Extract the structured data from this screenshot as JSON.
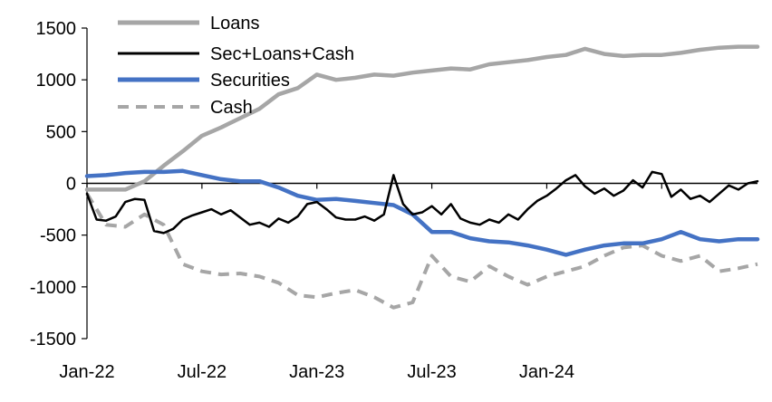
{
  "chart_data": {
    "type": "line",
    "title": "",
    "xlabel": "",
    "ylabel": "",
    "x_tick_labels": [
      "Jan-22",
      "Jul-22",
      "Jan-23",
      "Jul-23",
      "Jan-24"
    ],
    "y_tick_labels": [
      "1500",
      "1000",
      "500",
      "0",
      "-500",
      "-1000",
      "-1500"
    ],
    "ylim": [
      -1500,
      1500
    ],
    "grid": false,
    "legend_position": "top-left",
    "x_unit": "months since Jan-22",
    "series": [
      {
        "name": "Loans",
        "color": "#A6A6A6",
        "style": "solid",
        "x": [
          0,
          1,
          2,
          3,
          4,
          5,
          6,
          7,
          8,
          9,
          10,
          11,
          12,
          13,
          14,
          15,
          16,
          17,
          18,
          19,
          20,
          21,
          22,
          23,
          24,
          25,
          26,
          27,
          28,
          29,
          30,
          31,
          32,
          33,
          34,
          35
        ],
        "values": [
          -60,
          -60,
          -60,
          20,
          170,
          310,
          460,
          540,
          630,
          720,
          860,
          920,
          1050,
          1000,
          1020,
          1050,
          1040,
          1070,
          1090,
          1110,
          1100,
          1150,
          1170,
          1190,
          1220,
          1240,
          1300,
          1250,
          1230,
          1240,
          1240,
          1260,
          1290,
          1310,
          1320,
          1320
        ]
      },
      {
        "name": "Sec+Loans+Cash",
        "color": "#000000",
        "style": "solid",
        "x": [
          0,
          0.5,
          1,
          1.5,
          2,
          2.5,
          3,
          3.5,
          4,
          4.5,
          5,
          5.5,
          6,
          6.5,
          7,
          7.5,
          8,
          8.5,
          9,
          9.5,
          10,
          10.5,
          11,
          11.5,
          12,
          12.5,
          13,
          13.5,
          14,
          14.5,
          15,
          15.5,
          16,
          16.5,
          17,
          17.5,
          18,
          18.5,
          19,
          19.5,
          20,
          20.5,
          21,
          21.5,
          22,
          22.5,
          23,
          23.5,
          24,
          24.5,
          25,
          25.5,
          26,
          26.5,
          27,
          27.5,
          28,
          28.5,
          29,
          29.5,
          30,
          30.5,
          31,
          31.5,
          32,
          32.5,
          33,
          33.5,
          34,
          34.5,
          35
        ],
        "values": [
          -100,
          -350,
          -360,
          -320,
          -180,
          -150,
          -160,
          -460,
          -480,
          -440,
          -350,
          -310,
          -280,
          -250,
          -300,
          -260,
          -330,
          -400,
          -380,
          -420,
          -340,
          -380,
          -320,
          -200,
          -180,
          -250,
          -330,
          -350,
          -350,
          -320,
          -360,
          -300,
          80,
          -200,
          -300,
          -280,
          -220,
          -300,
          -200,
          -340,
          -380,
          -400,
          -350,
          -380,
          -300,
          -350,
          -250,
          -170,
          -120,
          -50,
          30,
          80,
          -30,
          -100,
          -50,
          -120,
          -70,
          30,
          -40,
          110,
          90,
          -130,
          -60,
          -150,
          -120,
          -180,
          -100,
          -20,
          -60,
          0,
          20
        ]
      },
      {
        "name": "Securities",
        "color": "#4472C4",
        "style": "solid",
        "x": [
          0,
          1,
          2,
          3,
          4,
          5,
          6,
          7,
          8,
          9,
          10,
          11,
          12,
          13,
          14,
          15,
          16,
          17,
          18,
          19,
          20,
          21,
          22,
          23,
          24,
          25,
          26,
          27,
          28,
          29,
          30,
          31,
          32,
          33,
          34,
          35
        ],
        "values": [
          70,
          80,
          100,
          110,
          110,
          120,
          80,
          40,
          20,
          20,
          -40,
          -120,
          -160,
          -150,
          -170,
          -190,
          -210,
          -300,
          -470,
          -470,
          -530,
          -560,
          -570,
          -600,
          -640,
          -690,
          -640,
          -600,
          -580,
          -580,
          -540,
          -470,
          -540,
          -560,
          -540,
          -540
        ]
      },
      {
        "name": "Cash",
        "color": "#A6A6A6",
        "style": "dashed",
        "x": [
          0,
          1,
          2,
          3,
          4,
          5,
          6,
          7,
          8,
          9,
          10,
          11,
          12,
          13,
          14,
          15,
          16,
          17,
          18,
          19,
          20,
          21,
          22,
          23,
          24,
          25,
          26,
          27,
          28,
          29,
          30,
          31,
          32,
          33,
          34,
          35
        ],
        "values": [
          -100,
          -400,
          -420,
          -300,
          -400,
          -780,
          -850,
          -880,
          -870,
          -900,
          -960,
          -1080,
          -1100,
          -1060,
          -1030,
          -1100,
          -1200,
          -1150,
          -700,
          -900,
          -950,
          -800,
          -900,
          -980,
          -900,
          -850,
          -800,
          -700,
          -620,
          -600,
          -700,
          -750,
          -700,
          -850,
          -820,
          -780
        ]
      }
    ]
  }
}
